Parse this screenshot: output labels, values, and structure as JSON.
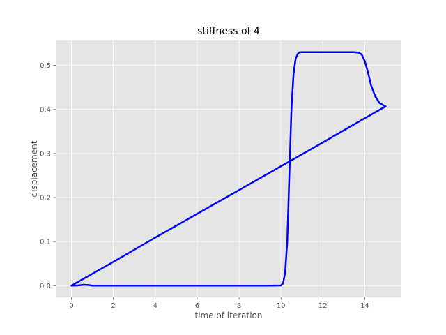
{
  "chart_data": {
    "type": "line",
    "title": "stiffness of 4",
    "xlabel": "time of iteration",
    "ylabel": "displacement",
    "xlim": [
      -0.75,
      15.75
    ],
    "ylim": [
      -0.0265,
      0.5565
    ],
    "xticks": [
      0,
      2,
      4,
      6,
      8,
      10,
      12,
      14
    ],
    "xtick_labels": [
      "0",
      "2",
      "4",
      "6",
      "8",
      "10",
      "12",
      "14"
    ],
    "yticks": [
      0.0,
      0.1,
      0.2,
      0.3,
      0.4,
      0.5
    ],
    "ytick_labels": [
      "0.0",
      "0.1",
      "0.2",
      "0.3",
      "0.4",
      "0.5"
    ],
    "grid": true,
    "legend": "none",
    "colors": {
      "background": "#e5e5e5",
      "grid": "#ffffff",
      "line": "#0000ff",
      "tick": "#555555"
    },
    "series": [
      {
        "color": "#0000ff",
        "x": [
          0,
          0.3,
          0.6,
          0.8,
          1.0,
          2.0,
          4.0,
          6.0,
          8.0,
          9.5,
          10.0,
          10.1,
          10.2,
          10.3,
          10.4,
          10.5,
          10.6,
          10.7,
          10.8,
          10.9,
          11.0,
          12.0,
          13.0,
          13.5,
          13.7,
          13.85,
          14.0,
          14.15,
          14.3,
          14.5,
          14.7,
          14.9,
          15.0,
          14.0,
          12.0,
          10.0,
          8.0,
          6.0,
          4.0,
          2.0,
          0
        ],
        "y": [
          0.0,
          0.0005,
          0.002,
          0.0015,
          0.0,
          0.0,
          0.0,
          0.0,
          0.0,
          0.0,
          0.0005,
          0.005,
          0.03,
          0.1,
          0.25,
          0.4,
          0.48,
          0.515,
          0.526,
          0.53,
          0.53,
          0.53,
          0.53,
          0.53,
          0.529,
          0.525,
          0.51,
          0.485,
          0.455,
          0.43,
          0.415,
          0.409,
          0.407,
          0.38,
          0.325,
          0.271,
          0.217,
          0.163,
          0.109,
          0.054,
          0.0
        ]
      }
    ]
  }
}
